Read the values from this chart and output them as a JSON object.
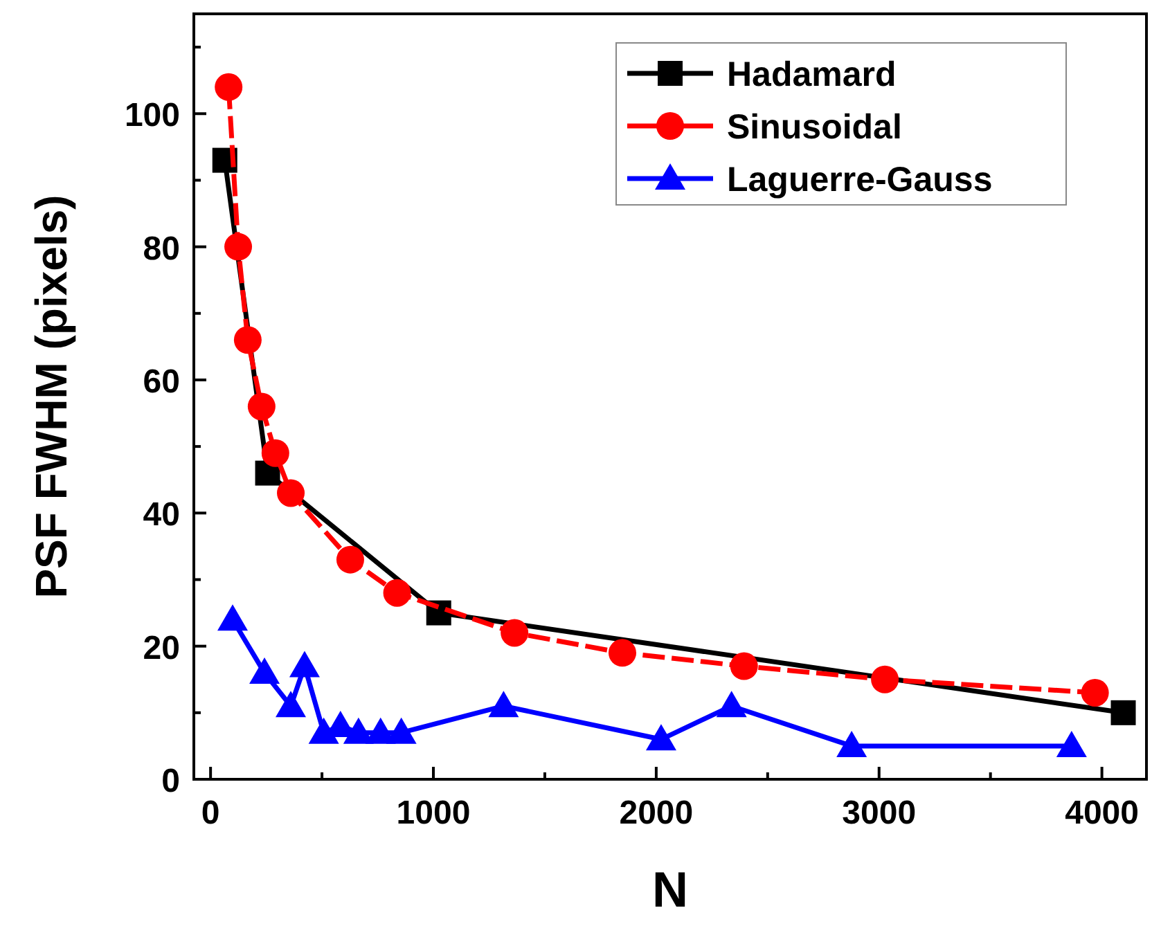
{
  "chart_data": {
    "type": "line",
    "xlabel": "N",
    "ylabel": "PSF FWHM (pixels)",
    "xlim": [
      -75,
      4200
    ],
    "ylim": [
      0,
      115
    ],
    "xticks": [
      0,
      {
        "value": 500,
        "label": null
      },
      1000,
      {
        "value": 1500,
        "label": null
      },
      2000,
      {
        "value": 2500,
        "label": null
      },
      3000,
      {
        "value": 3500,
        "label": null
      },
      4000
    ],
    "yticks": [
      0,
      {
        "value": 10,
        "label": null
      },
      20,
      {
        "value": 30,
        "label": null
      },
      40,
      {
        "value": 50,
        "label": null
      },
      60,
      {
        "value": 70,
        "label": null
      },
      80,
      {
        "value": 90,
        "label": null
      },
      100,
      {
        "value": 110,
        "label": null
      }
    ],
    "grid": false,
    "legend": "top right",
    "series": [
      {
        "name": "Hadamard",
        "color": "#000000",
        "marker": "square",
        "line_style": "solid",
        "x": [
          64,
          256,
          1024,
          4096
        ],
        "values": [
          93,
          46,
          25,
          10
        ]
      },
      {
        "name": "Sinusoidal",
        "color": "#ff0000",
        "marker": "circle",
        "line_style": "dashed",
        "x": [
          81,
          124,
          167,
          229,
          291,
          360,
          627,
          837,
          1364,
          1848,
          2394,
          3026,
          3969
        ],
        "values": [
          104,
          80,
          66,
          56,
          49,
          43,
          33,
          28,
          22,
          19,
          17,
          15,
          13
        ]
      },
      {
        "name": "Laguerre-Gauss",
        "color": "#0000ff",
        "marker": "triangle",
        "line_style": "solid",
        "x": [
          99,
          242,
          360,
          422,
          508,
          583,
          664,
          763,
          856,
          1315,
          2022,
          2338,
          2877,
          3864
        ],
        "values": [
          24,
          16,
          11,
          17,
          7,
          8,
          7,
          7,
          7,
          11,
          6,
          11,
          5,
          5
        ]
      }
    ]
  }
}
